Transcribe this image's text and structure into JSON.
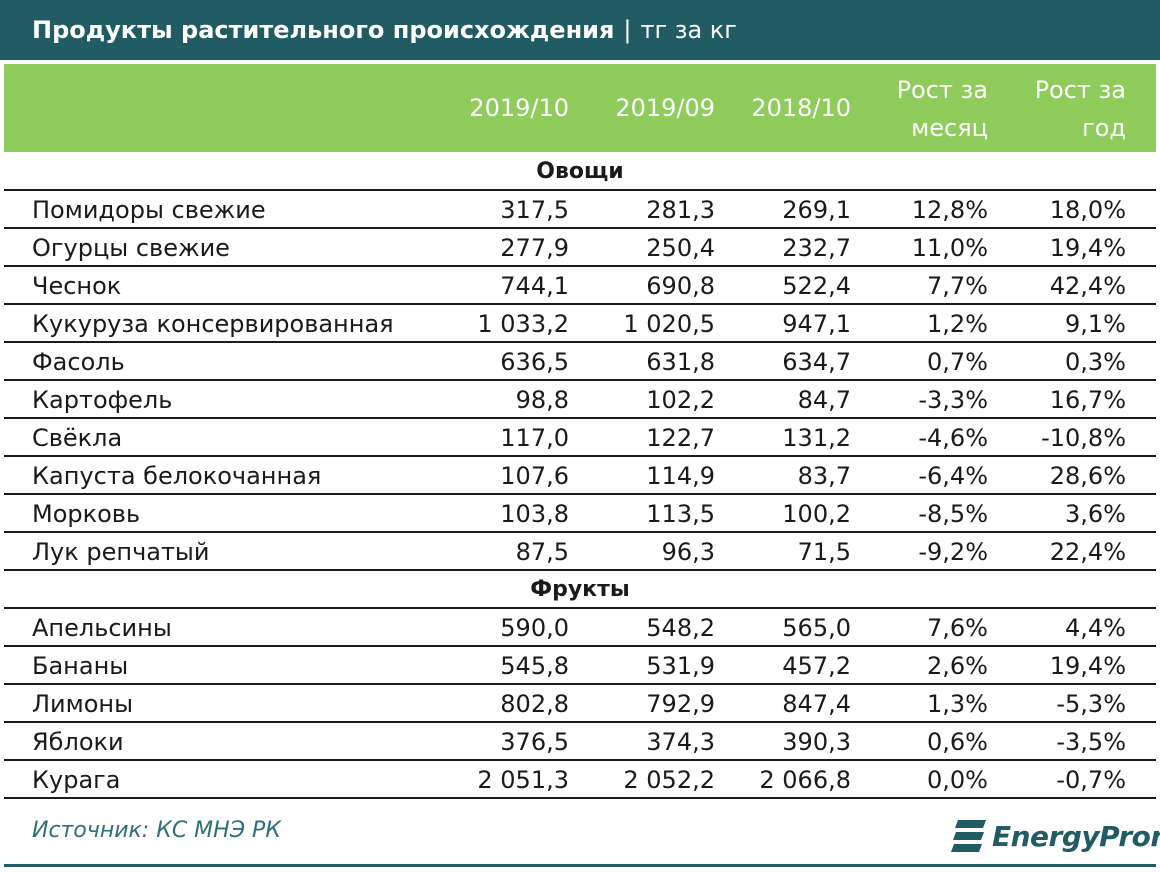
{
  "title": {
    "main": "Продукты растительного происхождения",
    "separator": "|",
    "unit": "тг за кг"
  },
  "chart_data": {
    "type": "table",
    "columns": [
      "2019/10",
      "2019/09",
      "2018/10",
      "Рост за месяц",
      "Рост за год"
    ],
    "column_header_lines": [
      [
        "2019/10"
      ],
      [
        "2019/09"
      ],
      [
        "2018/10"
      ],
      [
        "Рост за",
        "месяц"
      ],
      [
        "Рост за",
        "год"
      ]
    ],
    "groups": [
      {
        "name": "Овощи",
        "rows": [
          {
            "name": "Помидоры свежие",
            "values": [
              "317,5",
              "281,3",
              "269,1",
              "12,8%",
              "18,0%"
            ]
          },
          {
            "name": "Огурцы свежие",
            "values": [
              "277,9",
              "250,4",
              "232,7",
              "11,0%",
              "19,4%"
            ]
          },
          {
            "name": "Чеснок",
            "values": [
              "744,1",
              "690,8",
              "522,4",
              "7,7%",
              "42,4%"
            ]
          },
          {
            "name": "Кукуруза консервированная",
            "values": [
              "1 033,2",
              "1 020,5",
              "947,1",
              "1,2%",
              "9,1%"
            ]
          },
          {
            "name": "Фасоль",
            "values": [
              "636,5",
              "631,8",
              "634,7",
              "0,7%",
              "0,3%"
            ]
          },
          {
            "name": "Картофель",
            "values": [
              "98,8",
              "102,2",
              "84,7",
              "-3,3%",
              "16,7%"
            ]
          },
          {
            "name": "Свёкла",
            "values": [
              "117,0",
              "122,7",
              "131,2",
              "-4,6%",
              "-10,8%"
            ]
          },
          {
            "name": "Капуста белокочанная",
            "values": [
              "107,6",
              "114,9",
              "83,7",
              "-6,4%",
              "28,6%"
            ]
          },
          {
            "name": "Морковь",
            "values": [
              "103,8",
              "113,5",
              "100,2",
              "-8,5%",
              "3,6%"
            ]
          },
          {
            "name": "Лук репчатый",
            "values": [
              "87,5",
              "96,3",
              "71,5",
              "-9,2%",
              "22,4%"
            ]
          }
        ]
      },
      {
        "name": "Фрукты",
        "rows": [
          {
            "name": "Апельсины",
            "values": [
              "590,0",
              "548,2",
              "565,0",
              "7,6%",
              "4,4%"
            ]
          },
          {
            "name": "Бананы",
            "values": [
              "545,8",
              "531,9",
              "457,2",
              "2,6%",
              "19,4%"
            ]
          },
          {
            "name": "Лимоны",
            "values": [
              "802,8",
              "792,9",
              "847,4",
              "1,3%",
              "-5,3%"
            ]
          },
          {
            "name": "Яблоки",
            "values": [
              "376,5",
              "374,3",
              "390,3",
              "0,6%",
              "-3,5%"
            ]
          },
          {
            "name": "Курага",
            "values": [
              "2 051,3",
              "2 052,2",
              "2 066,8",
              "0,0%",
              "-0,7%"
            ]
          }
        ]
      }
    ]
  },
  "footer": {
    "source": "Источник: КС МНЭ РК",
    "logo_text": "EnergyProm"
  },
  "colors": {
    "title_bg": "#215b63",
    "header_bg": "#8fcc5c",
    "source_text": "#2f6f78"
  },
  "icons": {
    "logo": "energyprom-logo-icon"
  }
}
